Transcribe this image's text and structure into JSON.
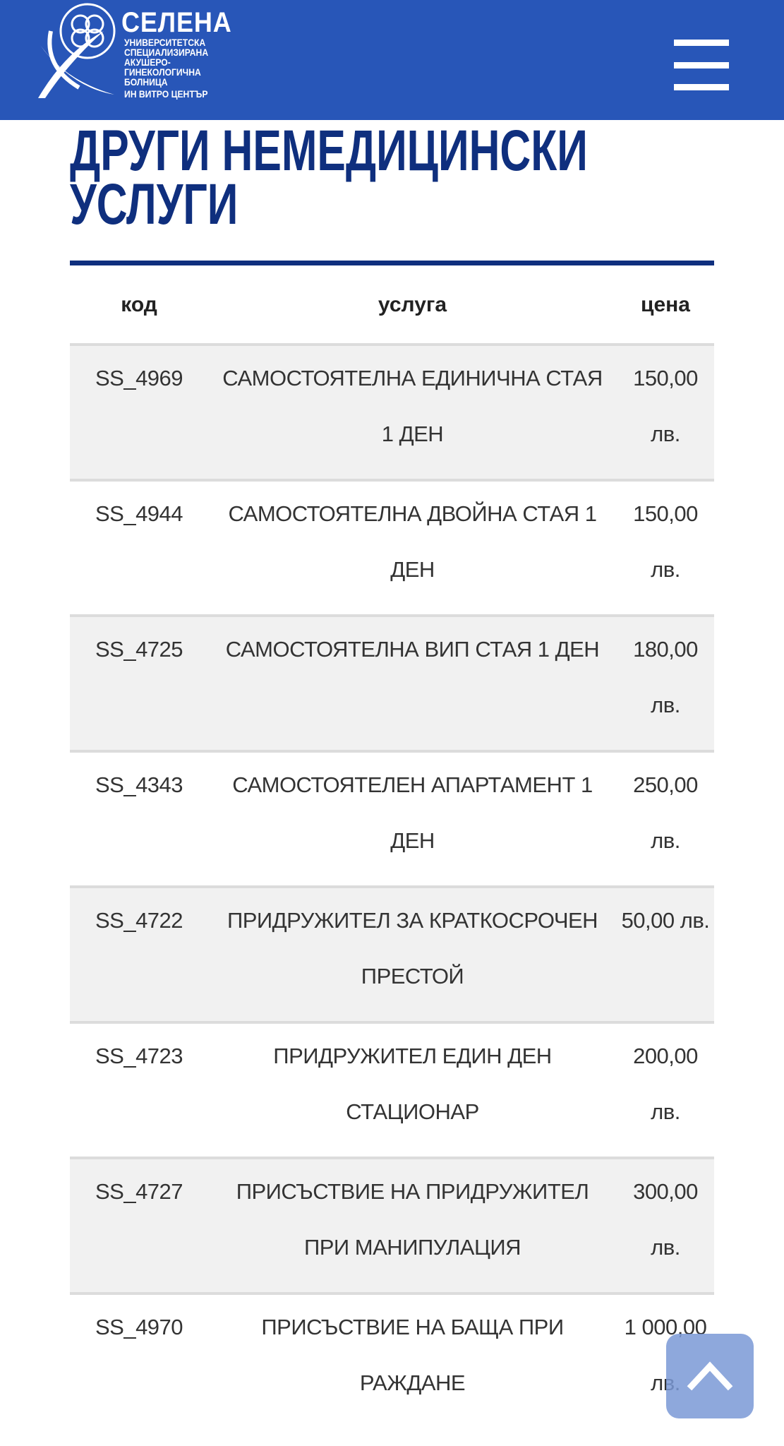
{
  "header": {
    "logo": {
      "name": "СЕЛЕНА",
      "subtitle": "УНИВЕРСИТЕТСКА\nСПЕЦИАЛИЗИРАНА\nАКУШЕРО-\nГИНЕКОЛОГИЧНА\nБОЛНИЦА",
      "ivf": "ИН ВИТРО ЦЕНТЪР"
    },
    "menu_icon": "hamburger-icon",
    "background_color": "#2856b8"
  },
  "page_title": "ДРУГИ НЕМЕДИЦИНСКИ УСЛУГИ",
  "table": {
    "columns": [
      "код",
      "услуга",
      "цена"
    ],
    "rows": [
      {
        "code": "SS_4969",
        "service": "САМОСТОЯТЕЛНА ЕДИНИЧНА СТАЯ 1 ДЕН",
        "price": "150,00 лв."
      },
      {
        "code": "SS_4944",
        "service": "САМОСТОЯТЕЛНА ДВОЙНА СТАЯ 1 ДЕН",
        "price": "150,00 лв."
      },
      {
        "code": "SS_4725",
        "service": "САМОСТОЯТЕЛНА ВИП СТАЯ 1 ДЕН",
        "price": "180,00 лв."
      },
      {
        "code": "SS_4343",
        "service": "САМОСТОЯТЕЛЕН АПАРТАМЕНТ 1 ДЕН",
        "price": "250,00 лв."
      },
      {
        "code": "SS_4722",
        "service": "ПРИДРУЖИТЕЛ ЗА КРАТКОСРОЧЕН ПРЕСТОЙ",
        "price": "50,00 лв."
      },
      {
        "code": "SS_4723",
        "service": "ПРИДРУЖИТЕЛ ЕДИН ДЕН СТАЦИОНАР",
        "price": "200,00 лв."
      },
      {
        "code": "SS_4727",
        "service": "ПРИСЪСТВИЕ НА ПРИДРУЖИТЕЛ ПРИ МАНИПУЛАЦИЯ",
        "price": "300,00 лв."
      },
      {
        "code": "SS_4970",
        "service": "ПРИСЪСТВИЕ НА БАЩА ПРИ РАЖДАНЕ",
        "price": "1 000,00 лв."
      }
    ]
  },
  "scroll_top_icon": "chevron-up-icon"
}
